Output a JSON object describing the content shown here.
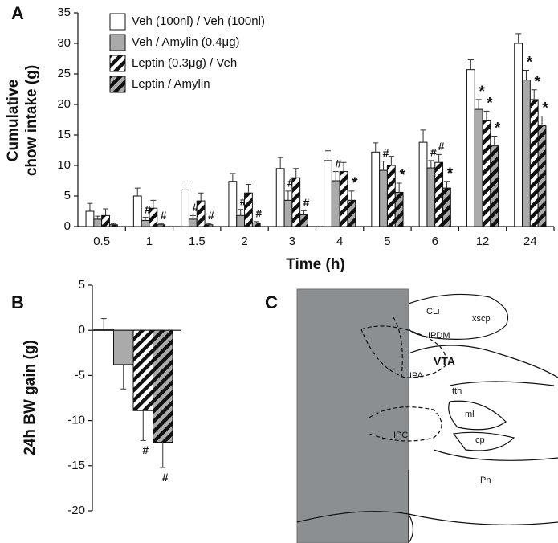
{
  "chart_data": [
    {
      "type": "bar",
      "panel": "A",
      "ylabel": [
        "Cumulative",
        "chow intake (g)"
      ],
      "xlabel": "Time (h)",
      "categories": [
        "0.5",
        "1",
        "1.5",
        "2",
        "3",
        "4",
        "5",
        "6",
        "12",
        "24"
      ],
      "ylim": [
        0,
        35
      ],
      "yticks": [
        0,
        5,
        10,
        15,
        20,
        25,
        30,
        35
      ],
      "series": [
        {
          "name": "Veh (100nl) / Veh (100nl)",
          "color": "#ffffff",
          "hatch": null,
          "values": [
            2.5,
            5.0,
            6.0,
            7.4,
            9.5,
            10.8,
            12.2,
            13.8,
            25.7,
            30.0
          ],
          "errors": [
            1.3,
            1.3,
            1.3,
            1.3,
            1.8,
            1.6,
            1.5,
            2.0,
            1.6,
            1.6
          ],
          "markers": [
            null,
            null,
            null,
            null,
            null,
            null,
            null,
            null,
            null,
            null
          ]
        },
        {
          "name": "Veh / Amylin (0.4μg)",
          "color": "#aaaaaa",
          "hatch": null,
          "values": [
            1.2,
            1.0,
            1.2,
            1.8,
            4.3,
            7.5,
            9.2,
            9.6,
            19.2,
            24.0
          ],
          "errors": [
            0.5,
            0.5,
            0.6,
            1.0,
            1.5,
            1.5,
            1.5,
            1.2,
            1.6,
            1.6
          ],
          "markers": [
            null,
            "#",
            "#",
            "#",
            "#",
            "#",
            "#",
            "#",
            "*",
            "*"
          ]
        },
        {
          "name": "Leptin (0.3μg) / Veh",
          "color": "#ffffff",
          "hatch": "#111111",
          "values": [
            1.8,
            3.0,
            4.2,
            5.5,
            8.0,
            9.0,
            10.0,
            10.5,
            17.3,
            20.8
          ],
          "errors": [
            1.1,
            1.3,
            1.3,
            1.4,
            1.5,
            1.5,
            1.5,
            1.3,
            1.6,
            1.6
          ],
          "markers": [
            null,
            null,
            null,
            null,
            null,
            null,
            null,
            "#",
            "*",
            "*"
          ]
        },
        {
          "name": "Leptin / Amylin",
          "color": "#aaaaaa",
          "hatch": "#111111",
          "values": [
            0.3,
            0.3,
            0.3,
            0.6,
            1.9,
            4.3,
            5.6,
            6.3,
            13.2,
            16.5
          ],
          "errors": [
            0.2,
            0.2,
            0.2,
            0.2,
            0.7,
            1.5,
            1.5,
            1.1,
            1.6,
            1.6
          ],
          "markers": [
            null,
            "#",
            "#",
            "#",
            "#",
            "*",
            "*",
            "*",
            "*",
            "*"
          ]
        }
      ]
    },
    {
      "type": "bar",
      "panel": "B",
      "ylabel": "24h BW gain (g)",
      "ylim": [
        -20,
        5
      ],
      "yticks": [
        -20,
        -15,
        -10,
        -5,
        0,
        5
      ],
      "values": [
        0.1,
        -3.8,
        -8.9,
        -12.4
      ],
      "errors": [
        1.2,
        2.7,
        3.3,
        2.8
      ],
      "markers": [
        null,
        null,
        "#",
        "#"
      ],
      "colors": [
        "#ffffff",
        "#aaaaaa",
        "#ffffff",
        "#aaaaaa"
      ],
      "hatches": [
        null,
        null,
        "#111111",
        "#111111"
      ]
    },
    {
      "type": "image",
      "panel": "C",
      "labels": [
        "CLi",
        "xscp",
        "IPDM",
        "VTA",
        "IPA",
        "tth",
        "ml",
        "IPC",
        "cp",
        "Pn"
      ]
    }
  ]
}
